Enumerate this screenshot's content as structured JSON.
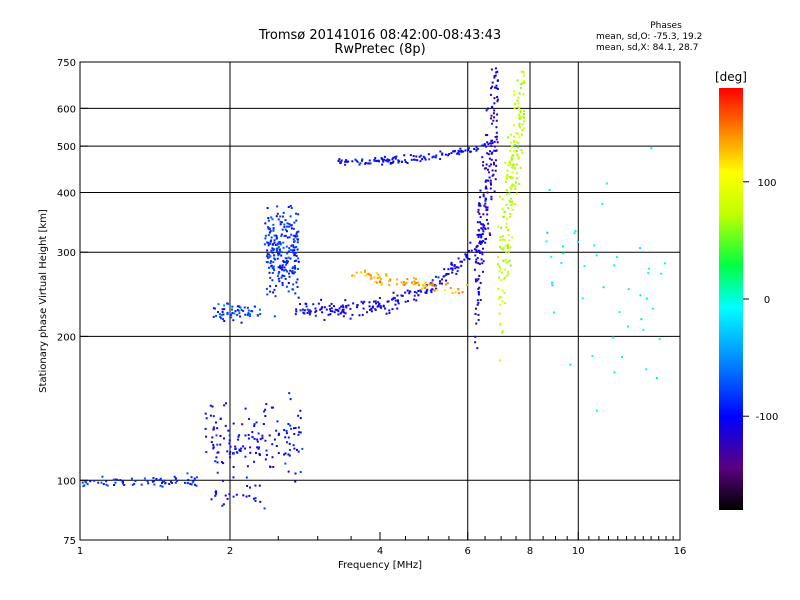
{
  "header": {
    "title_line1": "Tromsø 20141016 08:42:00-08:43:43",
    "title_line2": "RwPretec (8p)"
  },
  "phases_box": {
    "heading": "Phases",
    "line_o": "mean, sd,O: -75.3, 19.2",
    "line_x": "mean, sd,X:  84.1, 28.7"
  },
  "colorbar": {
    "unit": "[deg]",
    "ticks": [
      {
        "value": 100,
        "label": "100"
      },
      {
        "value": 0,
        "label": "0"
      },
      {
        "value": -100,
        "label": "-100"
      }
    ],
    "range": [
      -180,
      180
    ]
  },
  "chart_data": {
    "type": "scatter",
    "xlabel": "Frequency [MHz]",
    "ylabel": "Stationary phase Virtual Height [km]",
    "x_scale": "log",
    "y_scale": "log",
    "xlim": [
      1,
      16
    ],
    "ylim": [
      75,
      750
    ],
    "x_ticks": [
      {
        "v": 1,
        "label": "1"
      },
      {
        "v": 2,
        "label": "2"
      },
      {
        "v": 4,
        "label": "4"
      },
      {
        "v": 6,
        "label": "6"
      },
      {
        "v": 8,
        "label": "8"
      },
      {
        "v": 10,
        "label": "10"
      },
      {
        "v": 16,
        "label": "16"
      }
    ],
    "y_ticks": [
      {
        "v": 75,
        "label": "75"
      },
      {
        "v": 100,
        "label": "100"
      },
      {
        "v": 200,
        "label": "200"
      },
      {
        "v": 300,
        "label": "300"
      },
      {
        "v": 400,
        "label": "400"
      },
      {
        "v": 500,
        "label": "500"
      },
      {
        "v": 600,
        "label": "600"
      },
      {
        "v": 750,
        "label": "750"
      }
    ],
    "x_grid": [
      2,
      6,
      8,
      10
    ],
    "y_grid": [
      100,
      200,
      300,
      400,
      500,
      600
    ],
    "grid": true,
    "point_groups": [
      {
        "name": "low-100km",
        "x_range": [
          1.0,
          1.75
        ],
        "y_center": 99,
        "y_spread": 1.03,
        "phase": -95,
        "n": 70
      },
      {
        "name": "E-region-scatter",
        "x_range": [
          1.78,
          2.8
        ],
        "y_center": 120,
        "y_spread": 1.18,
        "phase": -110,
        "n": 160
      },
      {
        "name": "E-lower",
        "x_range": [
          1.8,
          2.4
        ],
        "y_center": 92,
        "y_spread": 1.06,
        "phase": -110,
        "n": 25
      },
      {
        "name": "F-spread-column",
        "x_range": [
          2.35,
          2.75
        ],
        "y_center": 300,
        "y_spread": 1.25,
        "phase": -95,
        "n": 240
      },
      {
        "name": "F-base-2MHz",
        "x_range": [
          1.85,
          2.3
        ],
        "y_center": 225,
        "y_spread": 1.04,
        "phase": -90,
        "n": 60
      },
      {
        "name": "F-O-trace",
        "x_range": [
          2.7,
          6.6
        ],
        "y_center": 232,
        "y_spread": 1.04,
        "phase": -115,
        "n": 220
      },
      {
        "name": "F-X-trace",
        "x_range": [
          3.5,
          6.0
        ],
        "y_center": 258,
        "y_spread": 1.03,
        "phase": 135,
        "n": 80
      },
      {
        "name": "O-cusp",
        "x_range": [
          6.2,
          6.9
        ],
        "y_center": 420,
        "y_spread": 1.35,
        "phase": -125,
        "n": 200
      },
      {
        "name": "X-cusp",
        "x_range": [
          6.9,
          7.8
        ],
        "y_center": 380,
        "y_spread": 1.35,
        "phase": 75,
        "n": 200
      },
      {
        "name": "upper-trace",
        "x_range": [
          3.3,
          6.6
        ],
        "y_center": 472,
        "y_spread": 1.02,
        "phase": -110,
        "n": 130
      },
      {
        "name": "high-freq-sparse",
        "x_range": [
          8.5,
          15.0
        ],
        "y_center": 250,
        "y_spread": 1.8,
        "phase": 0,
        "n": 45
      }
    ]
  }
}
